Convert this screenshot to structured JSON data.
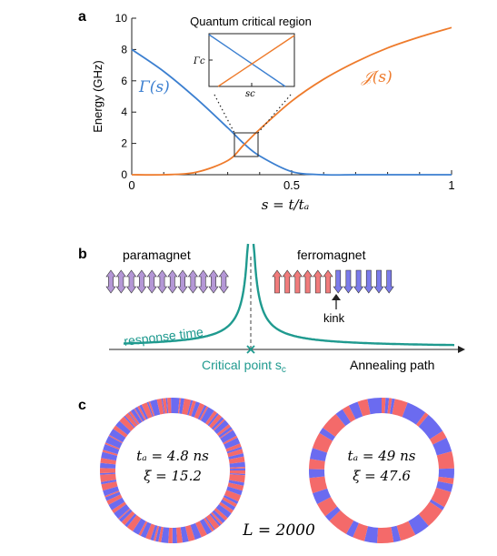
{
  "panel_a": {
    "letter": "a",
    "ylabel": "Energy (GHz)",
    "xlabel": "s = t/tₐ",
    "yticks": [
      "0",
      "2",
      "4",
      "6",
      "8",
      "10"
    ],
    "xticks": [
      "0",
      "0.5",
      "1"
    ],
    "gamma_label": "Γ(s)",
    "j_label": "𝒥(s)",
    "inset_title": "Quantum critical region",
    "inset_ylabel": "Γc",
    "inset_xlabel": "sc",
    "colors": {
      "gamma": "#3b7fd0",
      "j": "#ee7b2c"
    }
  },
  "panel_b": {
    "letter": "b",
    "left_label": "paramagnet",
    "right_label": "ferromagnet",
    "kink_label": "kink",
    "response_label": "response time",
    "critical_label": "Critical point s",
    "critical_sub": "c",
    "path_label": "Annealing path",
    "colors": {
      "curve": "#1f9a8f",
      "para": "#b497d6",
      "up": "#f07b7b",
      "down": "#7b7bea"
    }
  },
  "panel_c": {
    "letter": "c",
    "ring1_ta": "tₐ = 4.8 ns",
    "ring1_xi": "ξ = 15.2",
    "ring2_ta": "tₐ = 49 ns",
    "ring2_xi": "ξ = 47.6",
    "L_label": "L = 2000",
    "colors": {
      "red": "#f46a6a",
      "blue": "#6b6bf0"
    }
  },
  "chart_data": {
    "type": "line",
    "x": [
      0,
      0.1,
      0.2,
      0.3,
      0.35,
      0.4,
      0.5,
      0.6,
      0.7,
      0.8,
      0.9,
      1.0
    ],
    "series": [
      {
        "name": "Γ(s)",
        "values": [
          8.0,
          6.6,
          4.9,
          3.0,
          2.0,
          1.2,
          0.2,
          0.0,
          0.0,
          0.0,
          0.0,
          0.0
        ]
      },
      {
        "name": "𝒥(s)",
        "values": [
          0.0,
          0.0,
          0.15,
          0.9,
          1.9,
          2.9,
          4.7,
          6.1,
          7.2,
          8.1,
          8.8,
          9.4
        ]
      }
    ],
    "xlabel": "s = t/tₐ",
    "ylabel": "Energy (GHz)",
    "xlim": [
      0,
      1
    ],
    "ylim": [
      0,
      10
    ]
  }
}
